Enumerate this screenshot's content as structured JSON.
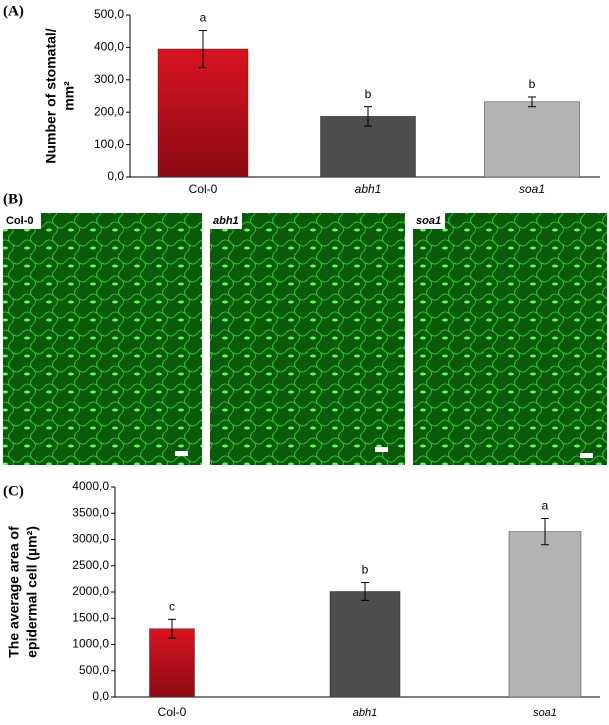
{
  "panel_labels": [
    "(A)",
    "(B)",
    "(C)"
  ],
  "micrographs": {
    "labels": [
      "Col-0",
      "abh1",
      "soa1"
    ]
  },
  "chart_data": [
    {
      "type": "bar",
      "ylabel": [
        "Number of stomatal/",
        "mm²"
      ],
      "categories": [
        "Col-0",
        "abh1",
        "soa1"
      ],
      "values": [
        395,
        187,
        232
      ],
      "errors": [
        57,
        30,
        15
      ],
      "annotations": [
        "a",
        "b",
        "b"
      ],
      "colors": [
        "#c00d1a",
        "#4d4d4f",
        "#b3b3b5"
      ],
      "ylim": [
        0,
        500
      ],
      "yticks": [
        {
          "value": 0,
          "label": "0,0"
        },
        {
          "value": 100,
          "label": "100,0"
        },
        {
          "value": 200,
          "label": "200,0"
        },
        {
          "value": 300,
          "label": "300,0"
        },
        {
          "value": 400,
          "label": "400,0"
        },
        {
          "value": 500,
          "label": "500,0"
        }
      ]
    },
    {
      "type": "bar",
      "ylabel": [
        "The average area of",
        "epidermal cell (µm²)"
      ],
      "categories": [
        "Col-0",
        "abh1",
        "soa1"
      ],
      "values": [
        1300,
        2010,
        3150
      ],
      "errors": [
        180,
        170,
        250
      ],
      "annotations": [
        "c",
        "b",
        "a"
      ],
      "colors": [
        "#c00d1a",
        "#4d4d4f",
        "#b3b3b5"
      ],
      "ylim": [
        0,
        4000
      ],
      "yticks": [
        {
          "value": 0,
          "label": "0,0"
        },
        {
          "value": 500,
          "label": "500,0"
        },
        {
          "value": 1000,
          "label": "1000,0"
        },
        {
          "value": 1500,
          "label": "1500,0"
        },
        {
          "value": 2000,
          "label": "2000,0"
        },
        {
          "value": 2500,
          "label": "2500,0"
        },
        {
          "value": 3000,
          "label": "3000,0"
        },
        {
          "value": 3500,
          "label": "3500,0"
        },
        {
          "value": 4000,
          "label": "4000,0"
        }
      ]
    }
  ]
}
